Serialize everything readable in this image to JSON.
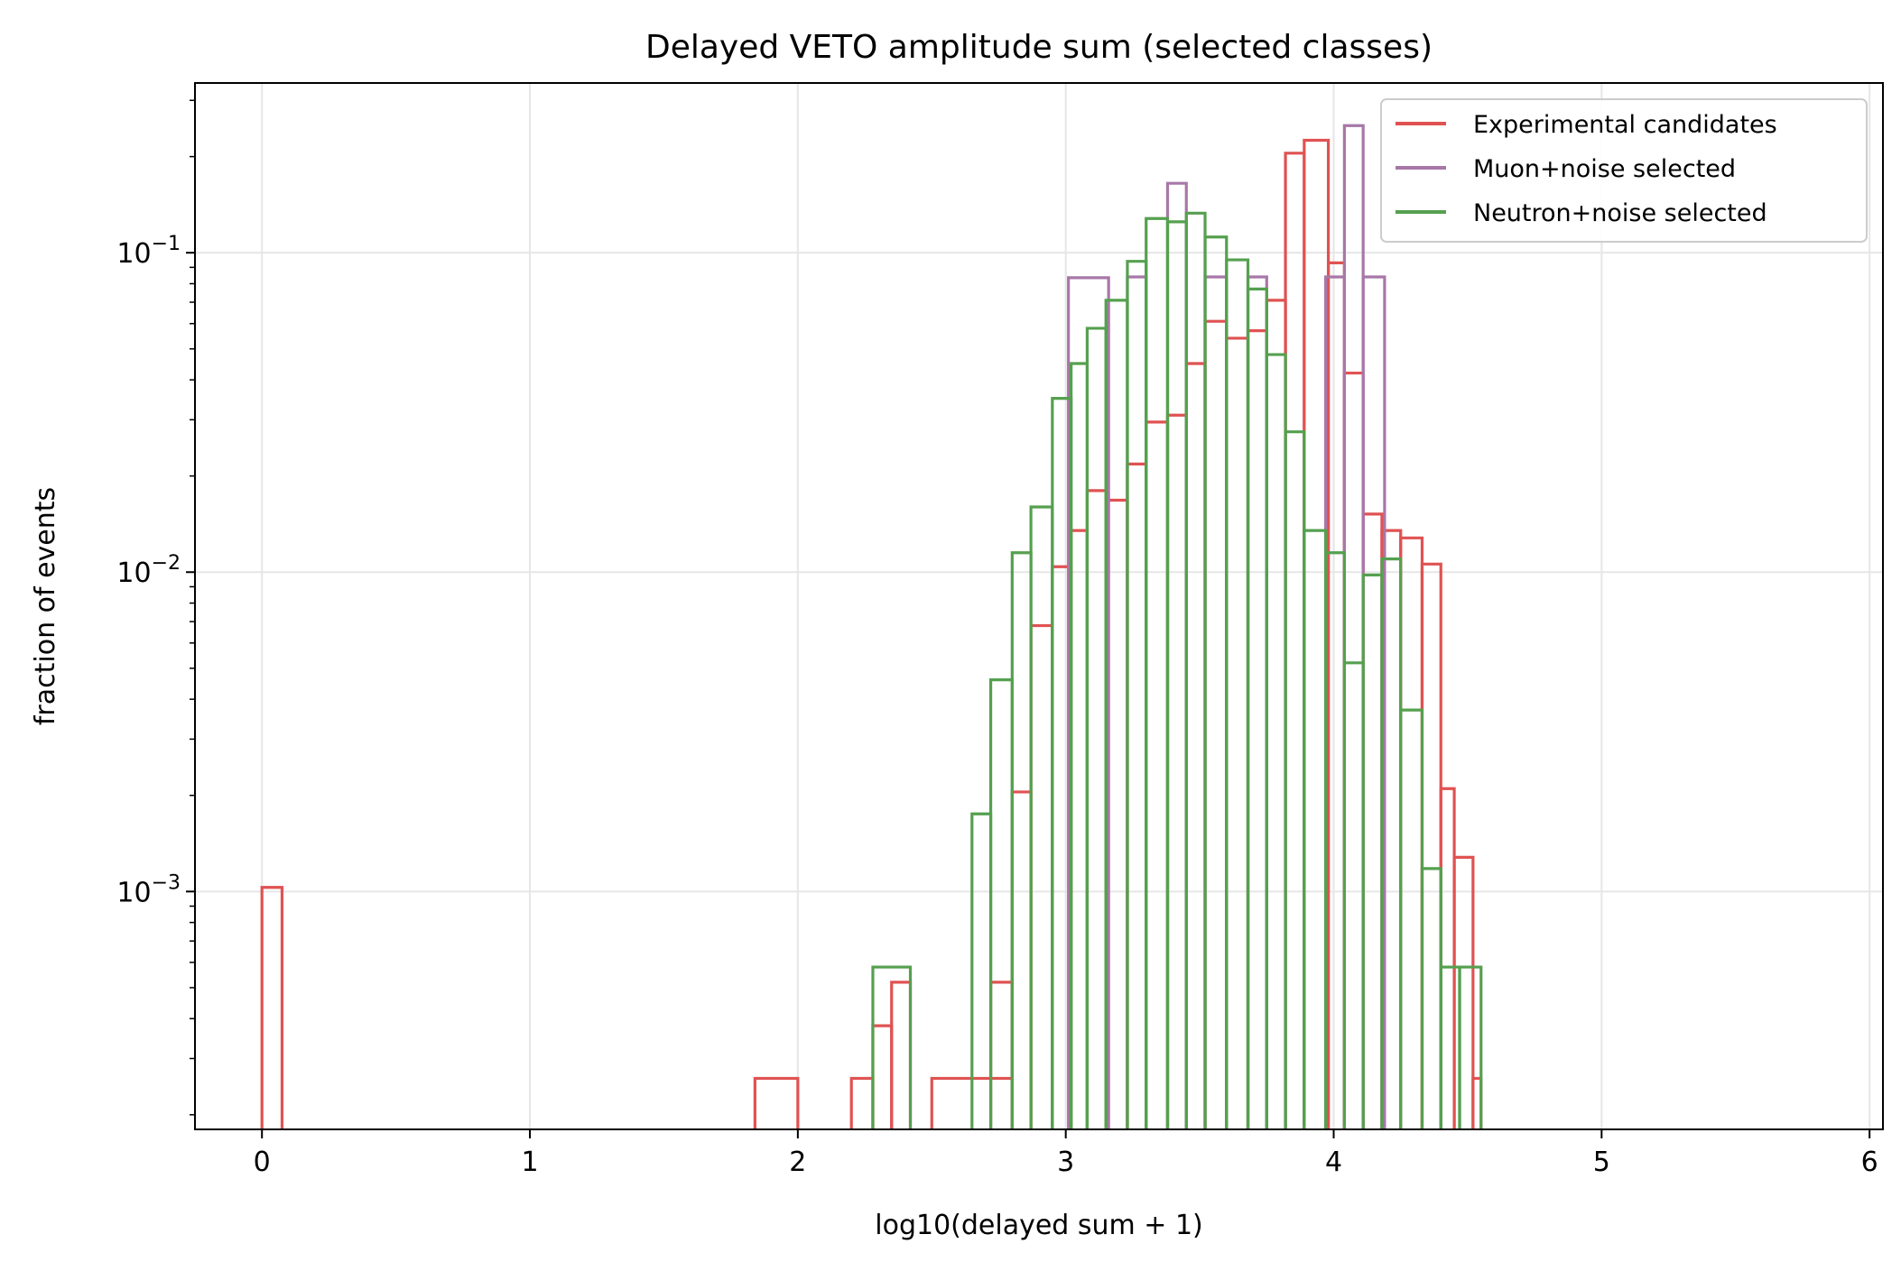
{
  "chart_data": {
    "type": "histogram-step",
    "title": "Delayed VETO amplitude sum (selected classes)",
    "xlabel": "log10(delayed sum + 1)",
    "ylabel": "fraction of events",
    "xlim": [
      -0.25,
      6.05
    ],
    "ylim": [
      0.00018,
      0.34
    ],
    "yscale": "log",
    "grid": true,
    "legend_position": "top-right",
    "x_ticks": [
      0,
      1,
      2,
      3,
      4,
      5,
      6
    ],
    "y_ticks": [
      {
        "value": 0.1,
        "base": "10",
        "exp": "−1"
      },
      {
        "value": 0.01,
        "base": "10",
        "exp": "−2"
      },
      {
        "value": 0.001,
        "base": "10",
        "exp": "−3"
      }
    ],
    "series": [
      {
        "name": "Experimental candidates",
        "color": "#e05252",
        "bins": [
          [
            0.0,
            0.075,
            0.00103
          ],
          [
            1.84,
            2.0,
            0.00026
          ],
          [
            2.2,
            2.28,
            0.00026
          ],
          [
            2.28,
            2.35,
            0.00038
          ],
          [
            2.35,
            2.42,
            0.00052
          ],
          [
            2.5,
            2.8,
            0.00026
          ],
          [
            2.72,
            2.8,
            0.00052
          ],
          [
            2.8,
            2.87,
            0.00205
          ],
          [
            2.87,
            2.95,
            0.0068
          ],
          [
            2.95,
            3.02,
            0.0104
          ],
          [
            3.02,
            3.08,
            0.0135
          ],
          [
            3.08,
            3.15,
            0.018
          ],
          [
            3.15,
            3.23,
            0.0168
          ],
          [
            3.23,
            3.3,
            0.0218
          ],
          [
            3.3,
            3.38,
            0.0295
          ],
          [
            3.38,
            3.45,
            0.031
          ],
          [
            3.45,
            3.52,
            0.045
          ],
          [
            3.52,
            3.6,
            0.061
          ],
          [
            3.6,
            3.68,
            0.054
          ],
          [
            3.68,
            3.75,
            0.057
          ],
          [
            3.75,
            3.82,
            0.071
          ],
          [
            3.82,
            3.89,
            0.205
          ],
          [
            3.89,
            3.98,
            0.225
          ],
          [
            3.98,
            4.04,
            0.093
          ],
          [
            4.04,
            4.11,
            0.042
          ],
          [
            4.11,
            4.18,
            0.0152
          ],
          [
            4.18,
            4.25,
            0.0135
          ],
          [
            4.25,
            4.33,
            0.0128
          ],
          [
            4.33,
            4.4,
            0.0106
          ],
          [
            4.4,
            4.45,
            0.0021
          ],
          [
            4.45,
            4.52,
            0.00128
          ],
          [
            4.52,
            4.55,
            0.00026
          ]
        ]
      },
      {
        "name": "Muon+noise selected",
        "color": "#a877a8",
        "bins": [
          [
            3.01,
            3.16,
            0.0835
          ],
          [
            3.23,
            3.3,
            0.084
          ],
          [
            3.38,
            3.45,
            0.165
          ],
          [
            3.52,
            3.6,
            0.084
          ],
          [
            3.68,
            3.75,
            0.084
          ],
          [
            3.97,
            4.04,
            0.084
          ],
          [
            4.04,
            4.11,
            0.25
          ],
          [
            4.11,
            4.19,
            0.084
          ]
        ],
        "spikes": [
          3.16,
          3.23,
          3.3,
          3.38,
          3.45,
          3.52,
          3.6,
          3.68,
          3.75,
          3.97,
          4.19
        ]
      },
      {
        "name": "Neutron+noise selected",
        "color": "#55a04f",
        "bins": [
          [
            2.28,
            2.42,
            0.00058
          ],
          [
            2.65,
            2.72,
            0.00175
          ],
          [
            2.72,
            2.8,
            0.0046
          ],
          [
            2.8,
            2.87,
            0.0115
          ],
          [
            2.87,
            2.95,
            0.016
          ],
          [
            2.95,
            3.02,
            0.035
          ],
          [
            3.02,
            3.08,
            0.045
          ],
          [
            3.08,
            3.15,
            0.058
          ],
          [
            3.15,
            3.23,
            0.071
          ],
          [
            3.23,
            3.3,
            0.094
          ],
          [
            3.3,
            3.38,
            0.128
          ],
          [
            3.38,
            3.45,
            0.125
          ],
          [
            3.45,
            3.52,
            0.133
          ],
          [
            3.52,
            3.6,
            0.112
          ],
          [
            3.6,
            3.68,
            0.095
          ],
          [
            3.68,
            3.75,
            0.077
          ],
          [
            3.75,
            3.82,
            0.048
          ],
          [
            3.82,
            3.89,
            0.0275
          ],
          [
            3.89,
            3.97,
            0.0135
          ],
          [
            3.97,
            4.04,
            0.0115
          ],
          [
            4.04,
            4.11,
            0.0052
          ],
          [
            4.11,
            4.18,
            0.0098
          ],
          [
            4.18,
            4.25,
            0.011
          ],
          [
            4.25,
            4.33,
            0.0037
          ],
          [
            4.33,
            4.4,
            0.00118
          ],
          [
            4.4,
            4.47,
            0.00058
          ],
          [
            4.47,
            4.55,
            0.00058
          ]
        ]
      }
    ]
  }
}
